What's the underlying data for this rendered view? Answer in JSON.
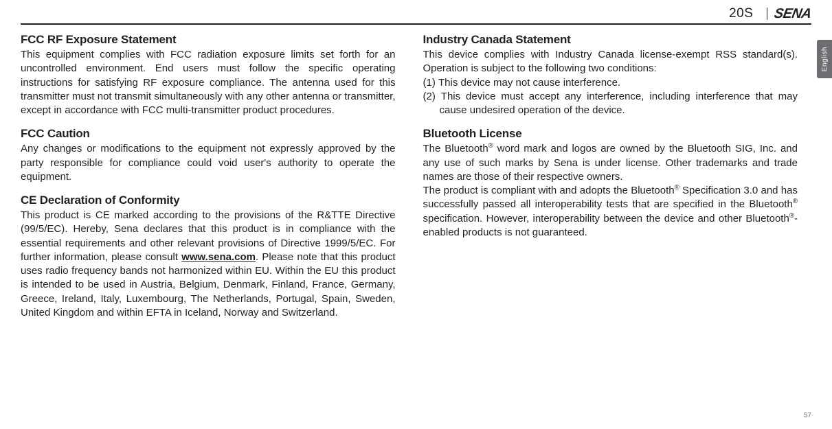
{
  "header": {
    "model": "20S",
    "brand": "SENA",
    "sidetab": "English"
  },
  "left": {
    "s1": {
      "title": "FCC RF Exposure Statement",
      "body": "This equipment complies with FCC radiation exposure limits set forth for an uncontrolled environment. End users must follow the specific operating instructions for satisfying RF exposure compliance. The antenna used for this transmitter must not transmit simultaneously with any other antenna or transmitter, except in accordance with FCC multi-transmitter product procedures."
    },
    "s2": {
      "title": "FCC Caution",
      "body": "Any changes or modifications to the equipment not expressly approved by the party responsible for compliance could void user's authority to operate the equipment."
    },
    "s3": {
      "title": "CE Declaration of Conformity",
      "body_pre": "This product is CE marked according to the provisions of the R&TTE Directive (99/5/EC). Hereby, Sena declares that this product is in compliance with the essential requirements and other relevant provisions of Directive 1999/5/EC. For further information, please consult ",
      "link": "www.sena.com",
      "body_post": ". Please note that this product uses radio frequency bands not harmonized within EU. Within the EU this product is intended to be used in Austria, Belgium, Denmark, Finland, France, Germany, Greece, Ireland, Italy, Luxembourg, The Netherlands, Portugal, Spain, Sweden, United Kingdom and within EFTA in Iceland, Norway and Switzerland."
    }
  },
  "right": {
    "s1": {
      "title": "Industry Canada Statement",
      "body": "This device complies with Industry Canada license-exempt RSS standard(s). Operation is subject to the following two conditions:",
      "li1": "(1) This device may not cause interference.",
      "li2": "(2) This device must accept any interference, including interference that may cause undesired operation of the device."
    },
    "s2": {
      "title": "Bluetooth License",
      "p1_a": "The Bluetooth",
      "p1_b": " word mark and logos are owned by the Bluetooth SIG, Inc. and any use of such marks by Sena is under license. Other trademarks and trade names are those of their respective owners.",
      "p2_a": "The product is compliant with and adopts the Bluetooth",
      "p2_b": " Specification 3.0 and has successfully passed all interoperability tests that are specified in the Bluetooth",
      "p2_c": " specification. However, interoperability between the device and other Bluetooth",
      "p2_d": "-enabled products is not guaranteed."
    }
  },
  "page_number": "57",
  "reg": "®"
}
